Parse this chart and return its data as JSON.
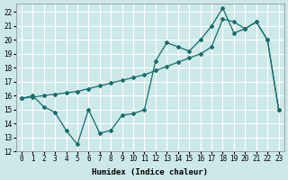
{
  "xlabel": "Humidex (Indice chaleur)",
  "ylabel": "",
  "bg_color": "#cce8e8",
  "grid_color": "#ffffff",
  "line_color": "#1a6b6b",
  "xlim": [
    -0.5,
    23.5
  ],
  "ylim": [
    12,
    22.6
  ],
  "yticks": [
    12,
    13,
    14,
    15,
    16,
    17,
    18,
    19,
    20,
    21,
    22
  ],
  "xticks": [
    0,
    1,
    2,
    3,
    4,
    5,
    6,
    7,
    8,
    9,
    10,
    11,
    12,
    13,
    14,
    15,
    16,
    17,
    18,
    19,
    20,
    21,
    22,
    23
  ],
  "line1_x": [
    0,
    1,
    2,
    3,
    4,
    5,
    6,
    7,
    8,
    9,
    10,
    11,
    12,
    13,
    14,
    15,
    16,
    17,
    18,
    19,
    20,
    21,
    22,
    23
  ],
  "line1_y": [
    15.8,
    16.0,
    15.2,
    14.8,
    13.5,
    12.5,
    15.0,
    13.3,
    13.5,
    14.6,
    14.7,
    15.0,
    18.5,
    19.8,
    19.5,
    19.2,
    20.0,
    21.0,
    22.3,
    20.5,
    20.8,
    21.3,
    20.0,
    15.0
  ],
  "line2_x": [
    0,
    1,
    2,
    3,
    4,
    5,
    6,
    7,
    8,
    9,
    10,
    11,
    12,
    13,
    14,
    15,
    16,
    17,
    18,
    19,
    20,
    21,
    22,
    23
  ],
  "line2_y": [
    15.8,
    15.9,
    16.0,
    16.1,
    16.2,
    16.3,
    16.5,
    16.7,
    16.9,
    17.1,
    17.3,
    17.5,
    17.8,
    18.1,
    18.4,
    18.7,
    19.0,
    19.5,
    21.5,
    21.3,
    20.8,
    21.3,
    20.0,
    15.0
  ]
}
